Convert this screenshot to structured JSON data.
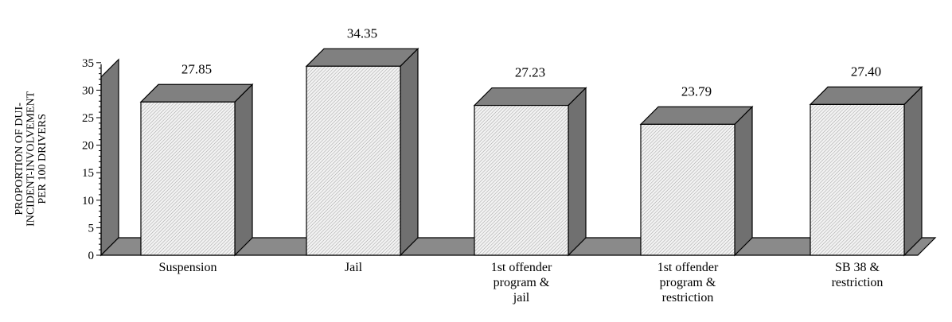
{
  "chart_data": {
    "type": "bar",
    "style": "3d",
    "categories": [
      [
        "Suspension"
      ],
      [
        "Jail"
      ],
      [
        "1st offender",
        "program &",
        "jail"
      ],
      [
        "1st offender",
        "program &",
        "restriction"
      ],
      [
        "SB 38 &",
        "restriction"
      ]
    ],
    "values": [
      27.85,
      34.35,
      27.23,
      23.79,
      27.4
    ],
    "value_labels": [
      "27.85",
      "34.35",
      "27.23",
      "23.79",
      "27.40"
    ],
    "ylabel": [
      "PROPORTION OF DUI-",
      "INCIDENT-INVOLVEMENT",
      "PER 100 DRIVERS"
    ],
    "yticks": [
      0,
      5,
      10,
      15,
      20,
      25,
      30,
      35
    ],
    "ylim": [
      0,
      35
    ],
    "grid": false,
    "colors": {
      "bar_front": "#e6e6e6",
      "bar_side": "#707070",
      "bar_top": "#808080",
      "floor": "#8a8a8a",
      "wall": "#777777",
      "outline": "#000000"
    }
  }
}
